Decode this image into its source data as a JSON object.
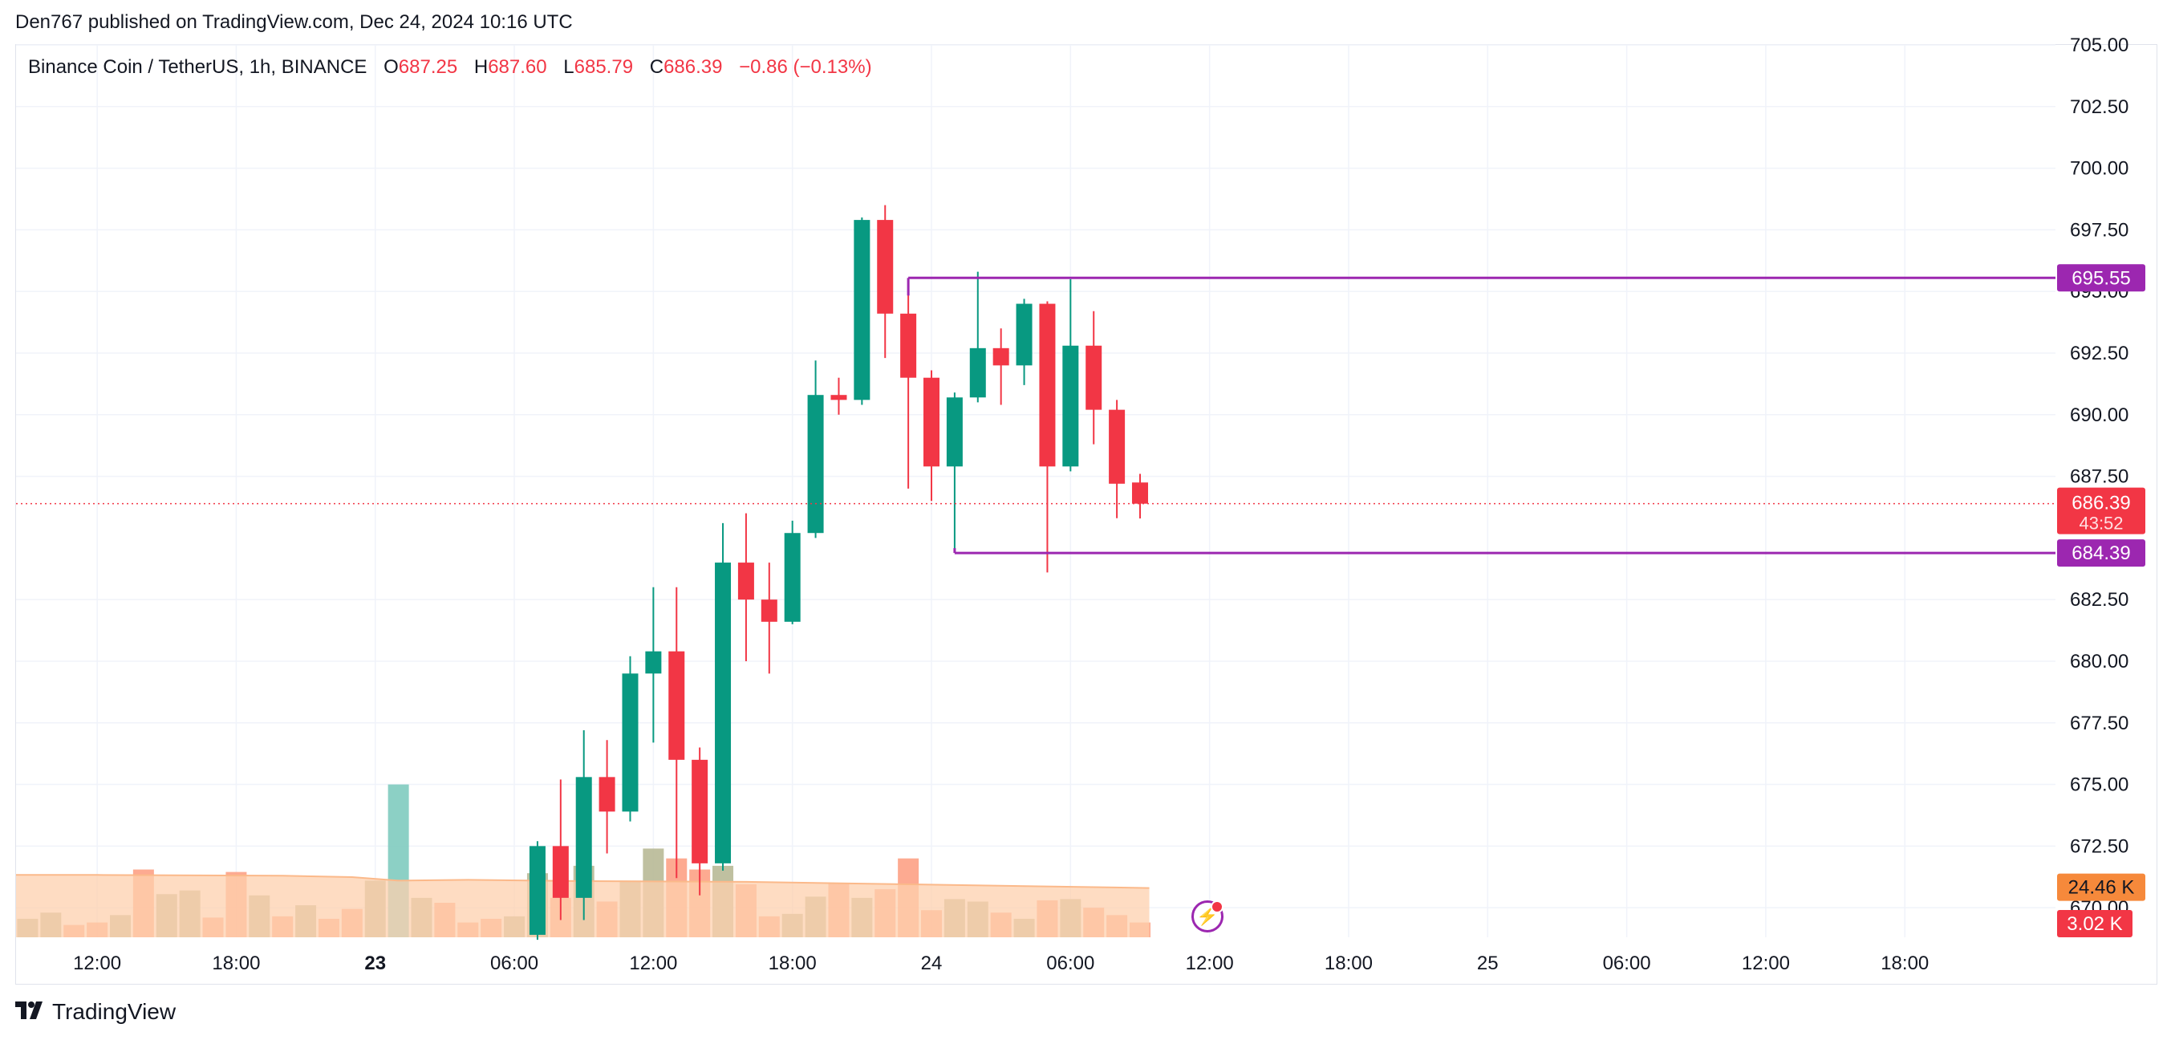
{
  "header": {
    "published": "Den767 published on TradingView.com, Dec 24, 2024 10:16 UTC"
  },
  "legend": {
    "symbol": "Binance Coin / TetherUS, 1h, BINANCE",
    "o_label": "O",
    "o": "687.25",
    "h_label": "H",
    "h": "687.60",
    "l_label": "L",
    "l": "685.79",
    "c_label": "C",
    "c": "686.39",
    "change": "−0.86 (−0.13%)"
  },
  "footer": {
    "brand": "TradingView"
  },
  "icons": {
    "brand_logo": "tradingview-logo-icon",
    "alert": "lightning-icon"
  },
  "colors": {
    "up": "#089981",
    "down": "#f23645",
    "level_line": "#9c27b0",
    "volume_up": "#b8b996",
    "volume_down": "#fda185",
    "volume_ma": "#fdd0ad",
    "last_price": "#f23645",
    "volume_ma_label": "#f6893b"
  },
  "chart_data": {
    "type": "candlestick",
    "title": "Binance Coin / TetherUS, 1h, BINANCE",
    "y_axis": {
      "ticks": [
        "705.00",
        "702.50",
        "700.00",
        "697.50",
        "695.00",
        "692.50",
        "690.00",
        "687.50",
        "682.50",
        "680.00",
        "677.50",
        "675.00",
        "672.50",
        "670.00"
      ],
      "range": [
        668.8,
        705.0
      ],
      "position": "right"
    },
    "x_axis": {
      "ticks": [
        {
          "label": "12:00",
          "bold": false,
          "t": 12
        },
        {
          "label": "18:00",
          "bold": false,
          "t": 18
        },
        {
          "label": "23",
          "bold": true,
          "t": 24
        },
        {
          "label": "06:00",
          "bold": false,
          "t": 30
        },
        {
          "label": "12:00",
          "bold": false,
          "t": 36
        },
        {
          "label": "18:00",
          "bold": false,
          "t": 42
        },
        {
          "label": "24",
          "bold": false,
          "t": 48
        },
        {
          "label": "06:00",
          "bold": false,
          "t": 54
        },
        {
          "label": "12:00",
          "bold": false,
          "t": 60
        },
        {
          "label": "18:00",
          "bold": false,
          "t": 66
        },
        {
          "label": "25",
          "bold": false,
          "t": 72
        },
        {
          "label": "06:00",
          "bold": false,
          "t": 78
        },
        {
          "label": "12:00",
          "bold": false,
          "t": 84
        },
        {
          "label": "18:00",
          "bold": false,
          "t": 90
        }
      ],
      "range_hours": [
        8.5,
        96.5
      ]
    },
    "candles": [
      {
        "t": 31,
        "o": 668.9,
        "h": 672.7,
        "l": 668.7,
        "c": 672.5
      },
      {
        "t": 32,
        "o": 672.5,
        "h": 675.2,
        "l": 669.5,
        "c": 670.4
      },
      {
        "t": 33,
        "o": 670.4,
        "h": 677.2,
        "l": 669.5,
        "c": 675.3
      },
      {
        "t": 34,
        "o": 675.3,
        "h": 676.8,
        "l": 672.2,
        "c": 673.9
      },
      {
        "t": 35,
        "o": 673.9,
        "h": 680.2,
        "l": 673.5,
        "c": 679.5
      },
      {
        "t": 36,
        "o": 679.5,
        "h": 683.0,
        "l": 676.7,
        "c": 680.4
      },
      {
        "t": 37,
        "o": 680.4,
        "h": 683.0,
        "l": 671.2,
        "c": 676.0
      },
      {
        "t": 38,
        "o": 676.0,
        "h": 676.5,
        "l": 670.5,
        "c": 671.8
      },
      {
        "t": 39,
        "o": 671.8,
        "h": 685.6,
        "l": 671.5,
        "c": 684.0
      },
      {
        "t": 40,
        "o": 684.0,
        "h": 686.0,
        "l": 680.0,
        "c": 682.5
      },
      {
        "t": 41,
        "o": 682.5,
        "h": 684.0,
        "l": 679.5,
        "c": 681.6
      },
      {
        "t": 42,
        "o": 681.6,
        "h": 685.7,
        "l": 681.5,
        "c": 685.2
      },
      {
        "t": 43,
        "o": 685.2,
        "h": 692.2,
        "l": 685.0,
        "c": 690.8
      },
      {
        "t": 44,
        "o": 690.8,
        "h": 691.5,
        "l": 690.0,
        "c": 690.6
      },
      {
        "t": 45,
        "o": 690.6,
        "h": 698.0,
        "l": 690.4,
        "c": 697.9
      },
      {
        "t": 46,
        "o": 697.9,
        "h": 698.5,
        "l": 692.3,
        "c": 694.1
      },
      {
        "t": 47,
        "o": 694.1,
        "h": 695.5,
        "l": 687.0,
        "c": 691.5
      },
      {
        "t": 48,
        "o": 691.5,
        "h": 691.8,
        "l": 686.5,
        "c": 687.9
      },
      {
        "t": 49,
        "o": 687.9,
        "h": 690.9,
        "l": 684.4,
        "c": 690.7
      },
      {
        "t": 50,
        "o": 690.7,
        "h": 695.8,
        "l": 690.5,
        "c": 692.7
      },
      {
        "t": 51,
        "o": 692.7,
        "h": 693.5,
        "l": 690.4,
        "c": 692.0
      },
      {
        "t": 52,
        "o": 692.0,
        "h": 694.7,
        "l": 691.2,
        "c": 694.5
      },
      {
        "t": 53,
        "o": 694.5,
        "h": 694.6,
        "l": 683.6,
        "c": 687.9
      },
      {
        "t": 54,
        "o": 687.9,
        "h": 695.5,
        "l": 687.7,
        "c": 692.8
      },
      {
        "t": 55,
        "o": 692.8,
        "h": 694.2,
        "l": 688.8,
        "c": 690.2
      },
      {
        "t": 56,
        "o": 690.2,
        "h": 690.6,
        "l": 685.8,
        "c": 687.2
      },
      {
        "t": 57,
        "o": 687.25,
        "h": 687.6,
        "l": 685.79,
        "c": 686.39
      }
    ],
    "volume": [
      {
        "t": 9,
        "v": 0.75,
        "up": true
      },
      {
        "t": 10,
        "v": 1.0,
        "up": true
      },
      {
        "t": 11,
        "v": 0.5,
        "up": false
      },
      {
        "t": 12,
        "v": 0.6,
        "up": false
      },
      {
        "t": 13,
        "v": 0.9,
        "up": true
      },
      {
        "t": 14,
        "v": 2.75,
        "up": false
      },
      {
        "t": 15,
        "v": 1.75,
        "up": true
      },
      {
        "t": 16,
        "v": 1.9,
        "up": true
      },
      {
        "t": 17,
        "v": 0.8,
        "up": false
      },
      {
        "t": 18,
        "v": 2.65,
        "up": false
      },
      {
        "t": 19,
        "v": 1.7,
        "up": true
      },
      {
        "t": 20,
        "v": 0.85,
        "up": false
      },
      {
        "t": 21,
        "v": 1.3,
        "up": true
      },
      {
        "t": 22,
        "v": 0.75,
        "up": false
      },
      {
        "t": 23,
        "v": 1.15,
        "up": false
      },
      {
        "t": 24,
        "v": 2.3,
        "up": true
      },
      {
        "t": 25,
        "v": 6.2,
        "up": true
      },
      {
        "t": 26,
        "v": 1.6,
        "up": true
      },
      {
        "t": 27,
        "v": 1.4,
        "up": false
      },
      {
        "t": 28,
        "v": 0.6,
        "up": false
      },
      {
        "t": 29,
        "v": 0.75,
        "up": false
      },
      {
        "t": 30,
        "v": 0.85,
        "up": true
      },
      {
        "t": 31,
        "v": 2.6,
        "up": true
      },
      {
        "t": 32,
        "v": 1.6,
        "up": false
      },
      {
        "t": 33,
        "v": 2.9,
        "up": true
      },
      {
        "t": 34,
        "v": 1.45,
        "up": false
      },
      {
        "t": 35,
        "v": 2.3,
        "up": true
      },
      {
        "t": 36,
        "v": 3.6,
        "up": true
      },
      {
        "t": 37,
        "v": 3.2,
        "up": false
      },
      {
        "t": 38,
        "v": 2.75,
        "up": false
      },
      {
        "t": 39,
        "v": 2.9,
        "up": true
      },
      {
        "t": 40,
        "v": 2.15,
        "up": false
      },
      {
        "t": 41,
        "v": 0.85,
        "up": false
      },
      {
        "t": 42,
        "v": 0.95,
        "up": true
      },
      {
        "t": 43,
        "v": 1.65,
        "up": true
      },
      {
        "t": 44,
        "v": 2.2,
        "up": false
      },
      {
        "t": 45,
        "v": 1.6,
        "up": true
      },
      {
        "t": 46,
        "v": 1.95,
        "up": false
      },
      {
        "t": 47,
        "v": 3.2,
        "up": false
      },
      {
        "t": 48,
        "v": 1.1,
        "up": false
      },
      {
        "t": 49,
        "v": 1.55,
        "up": true
      },
      {
        "t": 50,
        "v": 1.45,
        "up": true
      },
      {
        "t": 51,
        "v": 1.0,
        "up": false
      },
      {
        "t": 52,
        "v": 0.75,
        "up": true
      },
      {
        "t": 53,
        "v": 1.5,
        "up": false
      },
      {
        "t": 54,
        "v": 1.55,
        "up": true
      },
      {
        "t": 55,
        "v": 1.2,
        "up": false
      },
      {
        "t": 56,
        "v": 0.9,
        "up": false
      },
      {
        "t": 57,
        "v": 0.6,
        "up": false
      }
    ],
    "volume_ma": [
      {
        "t": 8.5,
        "v": 2.53
      },
      {
        "t": 12,
        "v": 2.53
      },
      {
        "t": 20,
        "v": 2.5
      },
      {
        "t": 23,
        "v": 2.44
      },
      {
        "t": 25,
        "v": 2.3
      },
      {
        "t": 28,
        "v": 2.33
      },
      {
        "t": 33,
        "v": 2.28
      },
      {
        "t": 40,
        "v": 2.25
      },
      {
        "t": 47,
        "v": 2.15
      },
      {
        "t": 57.4,
        "v": 2.0
      }
    ],
    "volume_scale_max": 7.0,
    "levels": [
      {
        "value": 695.55,
        "label": "695.55",
        "start_t": 47.0
      },
      {
        "value": 684.39,
        "label": "684.39",
        "start_t": 49.0
      }
    ],
    "last_price": {
      "value": 686.39,
      "label": "686.39",
      "countdown": "43:52"
    },
    "volume_labels": {
      "ma": "24.46 K",
      "last": "3.02 K"
    }
  }
}
